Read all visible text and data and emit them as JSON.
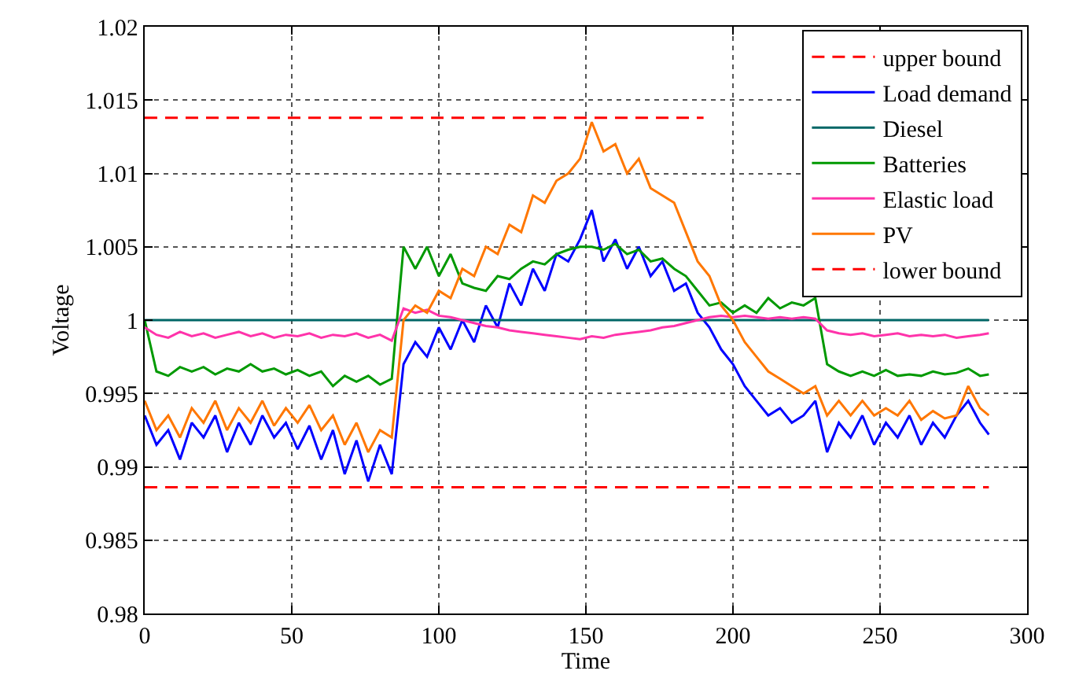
{
  "chart_data": {
    "type": "line",
    "xlabel": "Time",
    "ylabel": "Voltage",
    "x": [
      0,
      4,
      8,
      12,
      16,
      20,
      24,
      28,
      32,
      36,
      40,
      44,
      48,
      52,
      56,
      60,
      64,
      68,
      72,
      76,
      80,
      84,
      88,
      92,
      96,
      100,
      104,
      108,
      112,
      116,
      120,
      124,
      128,
      132,
      136,
      140,
      144,
      148,
      152,
      156,
      160,
      164,
      168,
      172,
      176,
      180,
      184,
      188,
      192,
      196,
      200,
      204,
      208,
      212,
      216,
      220,
      224,
      228,
      232,
      236,
      240,
      244,
      248,
      252,
      256,
      260,
      264,
      268,
      272,
      276,
      280,
      284,
      287
    ],
    "series": [
      {
        "name": "upper bound",
        "color": "#ff0000",
        "line_style": "dashed",
        "x": [
          0,
          190
        ],
        "values": [
          1.0138,
          1.0138
        ]
      },
      {
        "name": "Load demand",
        "color": "#0000ff",
        "values": [
          0.9935,
          0.9915,
          0.9925,
          0.9905,
          0.993,
          0.992,
          0.9935,
          0.991,
          0.993,
          0.9915,
          0.9935,
          0.992,
          0.993,
          0.9912,
          0.9928,
          0.9905,
          0.9925,
          0.9895,
          0.9918,
          0.989,
          0.9915,
          0.9895,
          0.997,
          0.9985,
          0.9975,
          0.9995,
          0.998,
          1.0,
          0.9985,
          1.001,
          0.9995,
          1.0025,
          1.001,
          1.0035,
          1.002,
          1.0045,
          1.004,
          1.0055,
          1.0075,
          1.004,
          1.0055,
          1.0035,
          1.005,
          1.003,
          1.004,
          1.002,
          1.0025,
          1.0005,
          0.9995,
          0.998,
          0.997,
          0.9955,
          0.9945,
          0.9935,
          0.994,
          0.993,
          0.9935,
          0.9945,
          0.991,
          0.993,
          0.992,
          0.9935,
          0.9915,
          0.993,
          0.992,
          0.9935,
          0.9915,
          0.993,
          0.992,
          0.9935,
          0.9945,
          0.993,
          0.9922
        ]
      },
      {
        "name": "Diesel",
        "color": "#006666",
        "x": [
          0,
          287
        ],
        "values": [
          1.0,
          1.0
        ]
      },
      {
        "name": "Batteries",
        "color": "#009900",
        "values": [
          1.0,
          0.9965,
          0.9962,
          0.9968,
          0.9965,
          0.9968,
          0.9963,
          0.9967,
          0.9965,
          0.997,
          0.9965,
          0.9967,
          0.9963,
          0.9966,
          0.9962,
          0.9965,
          0.9955,
          0.9962,
          0.9958,
          0.9962,
          0.9956,
          0.996,
          1.005,
          1.0035,
          1.005,
          1.003,
          1.0045,
          1.0025,
          1.0022,
          1.002,
          1.003,
          1.0028,
          1.0035,
          1.004,
          1.0038,
          1.0045,
          1.0048,
          1.005,
          1.005,
          1.0048,
          1.0052,
          1.0045,
          1.0048,
          1.004,
          1.0042,
          1.0035,
          1.003,
          1.002,
          1.001,
          1.0012,
          1.0005,
          1.001,
          1.0005,
          1.0015,
          1.0008,
          1.0012,
          1.001,
          1.0015,
          0.997,
          0.9965,
          0.9962,
          0.9965,
          0.9962,
          0.9966,
          0.9962,
          0.9963,
          0.9962,
          0.9965,
          0.9963,
          0.9964,
          0.9967,
          0.9962,
          0.9963
        ]
      },
      {
        "name": "Elastic load",
        "color": "#ff33aa",
        "values": [
          0.9995,
          0.999,
          0.9988,
          0.9992,
          0.9989,
          0.9991,
          0.9988,
          0.999,
          0.9992,
          0.9989,
          0.9991,
          0.9988,
          0.999,
          0.9989,
          0.9991,
          0.9988,
          0.999,
          0.9989,
          0.9991,
          0.9988,
          0.999,
          0.9986,
          1.0008,
          1.0005,
          1.0007,
          1.0003,
          1.0002,
          1.0,
          0.9998,
          0.9996,
          0.9995,
          0.9993,
          0.9992,
          0.9991,
          0.999,
          0.9989,
          0.9988,
          0.9987,
          0.9989,
          0.9988,
          0.999,
          0.9991,
          0.9992,
          0.9993,
          0.9995,
          0.9996,
          0.9998,
          1.0,
          1.0002,
          1.0003,
          1.0002,
          1.0003,
          1.0002,
          1.0001,
          1.0002,
          1.0001,
          1.0002,
          1.0001,
          0.9993,
          0.9991,
          0.999,
          0.9991,
          0.9989,
          0.999,
          0.9991,
          0.9989,
          0.999,
          0.9989,
          0.999,
          0.9988,
          0.9989,
          0.999,
          0.9991
        ]
      },
      {
        "name": "PV",
        "color": "#ff7700",
        "values": [
          0.9945,
          0.9925,
          0.9935,
          0.992,
          0.994,
          0.993,
          0.9945,
          0.9925,
          0.994,
          0.993,
          0.9945,
          0.9928,
          0.994,
          0.993,
          0.9942,
          0.9925,
          0.9935,
          0.9915,
          0.993,
          0.991,
          0.9925,
          0.992,
          1.0,
          1.001,
          1.0005,
          1.002,
          1.0015,
          1.0035,
          1.003,
          1.005,
          1.0045,
          1.0065,
          1.006,
          1.0085,
          1.008,
          1.0095,
          1.01,
          1.011,
          1.0135,
          1.0115,
          1.012,
          1.01,
          1.011,
          1.009,
          1.0085,
          1.008,
          1.006,
          1.004,
          1.003,
          1.001,
          1.0,
          0.9985,
          0.9975,
          0.9965,
          0.996,
          0.9955,
          0.995,
          0.9955,
          0.9935,
          0.9945,
          0.9935,
          0.9945,
          0.9935,
          0.994,
          0.9935,
          0.9945,
          0.9932,
          0.9938,
          0.9933,
          0.9935,
          0.9955,
          0.994,
          0.9935
        ]
      },
      {
        "name": "lower bound",
        "color": "#ff0000",
        "line_style": "dashed",
        "x": [
          0,
          287
        ],
        "values": [
          0.9886,
          0.9886
        ]
      }
    ],
    "xlim": [
      0,
      300
    ],
    "xticks": [
      0,
      50,
      100,
      150,
      200,
      250,
      300
    ],
    "ylim": [
      0.98,
      1.02
    ],
    "yticks": [
      0.98,
      0.985,
      0.99,
      0.995,
      1,
      1.005,
      1.01,
      1.015,
      1.02
    ],
    "grid": true,
    "legend": "top right"
  }
}
